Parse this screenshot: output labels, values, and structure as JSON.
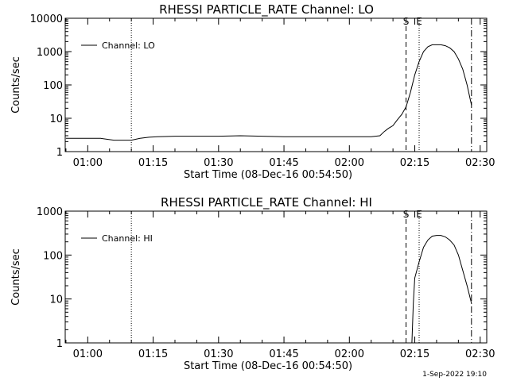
{
  "footer": {
    "timestamp": "1-Sep-2022 19:10"
  },
  "chart_data": [
    {
      "type": "line",
      "title": "RHESSI PARTICLE_RATE Channel: LO",
      "xlabel": "Start Time (08-Dec-16 00:54:50)",
      "ylabel": "Counts/sec",
      "yscale": "log",
      "xlim": [
        "00:54:50",
        "02:31:30"
      ],
      "ylim": [
        1,
        10000
      ],
      "x_ticks": [
        "01:00",
        "01:15",
        "01:30",
        "01:45",
        "02:00",
        "02:15",
        "02:30"
      ],
      "y_ticks": [
        "1",
        "10",
        "100",
        "1000",
        "10000"
      ],
      "legend": {
        "position": "top-left",
        "entries": [
          "Channel: LO"
        ]
      },
      "markers": {
        "dotted": [
          "01:10",
          "02:16"
        ],
        "dashed": [
          "02:13"
        ],
        "dashdot": [
          "02:28"
        ],
        "labels": [
          {
            "text": "S",
            "x": "02:13"
          },
          {
            "text": "E",
            "x": "02:16"
          }
        ]
      },
      "series": [
        {
          "x": [
            "00:55",
            "00:58",
            "01:00",
            "01:03",
            "01:06",
            "01:08",
            "01:10",
            "01:12",
            "01:14",
            "01:16",
            "01:20",
            "01:25",
            "01:30",
            "01:35",
            "01:40",
            "01:45",
            "01:50",
            "01:55",
            "02:00",
            "02:05",
            "02:07",
            "02:08",
            "02:09",
            "02:10",
            "02:11",
            "02:12",
            "02:13",
            "02:14",
            "02:15",
            "02:16",
            "02:17",
            "02:18",
            "02:19",
            "02:20",
            "02:21",
            "02:22",
            "02:23",
            "02:24",
            "02:25",
            "02:26",
            "02:27",
            "02:28"
          ],
          "values": [
            2.5,
            2.5,
            2.5,
            2.5,
            2.2,
            2.2,
            2.2,
            2.5,
            2.7,
            2.8,
            2.9,
            2.9,
            2.9,
            3,
            2.9,
            2.8,
            2.8,
            2.8,
            2.8,
            2.8,
            3,
            4,
            5,
            6,
            9,
            13,
            22,
            60,
            200,
            500,
            1000,
            1400,
            1600,
            1600,
            1600,
            1500,
            1300,
            1000,
            600,
            300,
            100,
            25
          ]
        }
      ]
    },
    {
      "type": "line",
      "title": "RHESSI PARTICLE_RATE Channel: HI",
      "xlabel": "Start Time (08-Dec-16 00:54:50)",
      "ylabel": "Counts/sec",
      "yscale": "log",
      "xlim": [
        "00:54:50",
        "02:31:30"
      ],
      "ylim": [
        1,
        1000
      ],
      "x_ticks": [
        "01:00",
        "01:15",
        "01:30",
        "01:45",
        "02:00",
        "02:15",
        "02:30"
      ],
      "y_ticks": [
        "1",
        "10",
        "100",
        "1000"
      ],
      "legend": {
        "position": "top-left",
        "entries": [
          "Channel: HI"
        ]
      },
      "markers": {
        "dotted": [
          "01:10",
          "02:16"
        ],
        "dashed": [
          "02:13"
        ],
        "dashdot": [
          "02:28"
        ],
        "labels": [
          {
            "text": "S",
            "x": "02:13"
          },
          {
            "text": "E",
            "x": "02:16"
          }
        ]
      },
      "series": [
        {
          "x": [
            "02:14:20",
            "02:14:40",
            "02:15",
            "02:16",
            "02:17",
            "02:18",
            "02:19",
            "02:20",
            "02:21",
            "02:22",
            "02:23",
            "02:24",
            "02:25",
            "02:26",
            "02:27",
            "02:28"
          ],
          "values": [
            1,
            8,
            30,
            70,
            150,
            220,
            270,
            280,
            280,
            260,
            220,
            170,
            100,
            45,
            20,
            8
          ]
        }
      ]
    }
  ]
}
